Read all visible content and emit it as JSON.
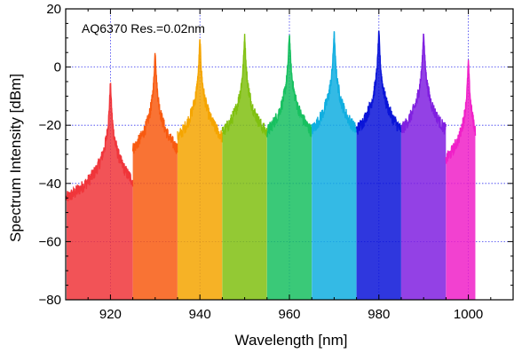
{
  "chart_data": {
    "type": "line",
    "title": "",
    "xlabel": "Wavelength [nm]",
    "ylabel": "Spectrum Intensity [dBm]",
    "annotation": "AQ6370 Res.=0.02nm",
    "xlim": [
      910,
      1010
    ],
    "ylim": [
      -80,
      20
    ],
    "xticks": [
      920,
      940,
      960,
      980,
      1000
    ],
    "yticks": [
      20,
      0,
      -20,
      -40,
      -60,
      -80
    ],
    "xtick_labels": [
      "920",
      "940",
      "960",
      "980",
      "1000"
    ],
    "ytick_labels": [
      "20",
      "0",
      "−20",
      "−40",
      "−60",
      "−80"
    ],
    "grid": true,
    "noise_floor_dbm": -78,
    "series": [
      {
        "peak_wavelength": 920,
        "peak_dbm": -6,
        "color": "#f0353a"
      },
      {
        "peak_wavelength": 930,
        "peak_dbm": 5,
        "color": "#f85a10"
      },
      {
        "peak_wavelength": 940,
        "peak_dbm": 9,
        "color": "#f5a500"
      },
      {
        "peak_wavelength": 950,
        "peak_dbm": 10.5,
        "color": "#80c010"
      },
      {
        "peak_wavelength": 960,
        "peak_dbm": 11,
        "color": "#18c060"
      },
      {
        "peak_wavelength": 970,
        "peak_dbm": 11.5,
        "color": "#10aee0"
      },
      {
        "peak_wavelength": 980,
        "peak_dbm": 11.5,
        "color": "#0a14d8"
      },
      {
        "peak_wavelength": 990,
        "peak_dbm": 11.5,
        "color": "#8020e0"
      },
      {
        "peak_wavelength": 1000,
        "peak_dbm": 1.5,
        "color": "#f020c8"
      }
    ]
  }
}
